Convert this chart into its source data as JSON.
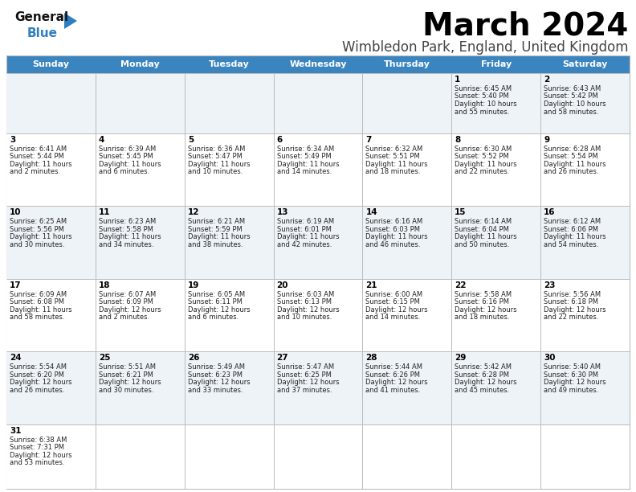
{
  "title": "March 2024",
  "subtitle": "Wimbledon Park, England, United Kingdom",
  "header_bg": "#3a85c0",
  "header_text": "#ffffff",
  "day_names": [
    "Sunday",
    "Monday",
    "Tuesday",
    "Wednesday",
    "Thursday",
    "Friday",
    "Saturday"
  ],
  "row_bg_odd": "#eef3f8",
  "row_bg_even": "#ffffff",
  "cell_border": "#bbbbbb",
  "date_color": "#000000",
  "info_color": "#222222",
  "title_color": "#000000",
  "subtitle_color": "#444444",
  "calendar": [
    [
      null,
      null,
      null,
      null,
      null,
      {
        "day": "1",
        "sunrise": "6:45 AM",
        "sunset": "5:40 PM",
        "daylight": "10 hours",
        "daylight2": "and 55 minutes."
      },
      {
        "day": "2",
        "sunrise": "6:43 AM",
        "sunset": "5:42 PM",
        "daylight": "10 hours",
        "daylight2": "and 58 minutes."
      }
    ],
    [
      {
        "day": "3",
        "sunrise": "6:41 AM",
        "sunset": "5:44 PM",
        "daylight": "11 hours",
        "daylight2": "and 2 minutes."
      },
      {
        "day": "4",
        "sunrise": "6:39 AM",
        "sunset": "5:45 PM",
        "daylight": "11 hours",
        "daylight2": "and 6 minutes."
      },
      {
        "day": "5",
        "sunrise": "6:36 AM",
        "sunset": "5:47 PM",
        "daylight": "11 hours",
        "daylight2": "and 10 minutes."
      },
      {
        "day": "6",
        "sunrise": "6:34 AM",
        "sunset": "5:49 PM",
        "daylight": "11 hours",
        "daylight2": "and 14 minutes."
      },
      {
        "day": "7",
        "sunrise": "6:32 AM",
        "sunset": "5:51 PM",
        "daylight": "11 hours",
        "daylight2": "and 18 minutes."
      },
      {
        "day": "8",
        "sunrise": "6:30 AM",
        "sunset": "5:52 PM",
        "daylight": "11 hours",
        "daylight2": "and 22 minutes."
      },
      {
        "day": "9",
        "sunrise": "6:28 AM",
        "sunset": "5:54 PM",
        "daylight": "11 hours",
        "daylight2": "and 26 minutes."
      }
    ],
    [
      {
        "day": "10",
        "sunrise": "6:25 AM",
        "sunset": "5:56 PM",
        "daylight": "11 hours",
        "daylight2": "and 30 minutes."
      },
      {
        "day": "11",
        "sunrise": "6:23 AM",
        "sunset": "5:58 PM",
        "daylight": "11 hours",
        "daylight2": "and 34 minutes."
      },
      {
        "day": "12",
        "sunrise": "6:21 AM",
        "sunset": "5:59 PM",
        "daylight": "11 hours",
        "daylight2": "and 38 minutes."
      },
      {
        "day": "13",
        "sunrise": "6:19 AM",
        "sunset": "6:01 PM",
        "daylight": "11 hours",
        "daylight2": "and 42 minutes."
      },
      {
        "day": "14",
        "sunrise": "6:16 AM",
        "sunset": "6:03 PM",
        "daylight": "11 hours",
        "daylight2": "and 46 minutes."
      },
      {
        "day": "15",
        "sunrise": "6:14 AM",
        "sunset": "6:04 PM",
        "daylight": "11 hours",
        "daylight2": "and 50 minutes."
      },
      {
        "day": "16",
        "sunrise": "6:12 AM",
        "sunset": "6:06 PM",
        "daylight": "11 hours",
        "daylight2": "and 54 minutes."
      }
    ],
    [
      {
        "day": "17",
        "sunrise": "6:09 AM",
        "sunset": "6:08 PM",
        "daylight": "11 hours",
        "daylight2": "and 58 minutes."
      },
      {
        "day": "18",
        "sunrise": "6:07 AM",
        "sunset": "6:09 PM",
        "daylight": "12 hours",
        "daylight2": "and 2 minutes."
      },
      {
        "day": "19",
        "sunrise": "6:05 AM",
        "sunset": "6:11 PM",
        "daylight": "12 hours",
        "daylight2": "and 6 minutes."
      },
      {
        "day": "20",
        "sunrise": "6:03 AM",
        "sunset": "6:13 PM",
        "daylight": "12 hours",
        "daylight2": "and 10 minutes."
      },
      {
        "day": "21",
        "sunrise": "6:00 AM",
        "sunset": "6:15 PM",
        "daylight": "12 hours",
        "daylight2": "and 14 minutes."
      },
      {
        "day": "22",
        "sunrise": "5:58 AM",
        "sunset": "6:16 PM",
        "daylight": "12 hours",
        "daylight2": "and 18 minutes."
      },
      {
        "day": "23",
        "sunrise": "5:56 AM",
        "sunset": "6:18 PM",
        "daylight": "12 hours",
        "daylight2": "and 22 minutes."
      }
    ],
    [
      {
        "day": "24",
        "sunrise": "5:54 AM",
        "sunset": "6:20 PM",
        "daylight": "12 hours",
        "daylight2": "and 26 minutes."
      },
      {
        "day": "25",
        "sunrise": "5:51 AM",
        "sunset": "6:21 PM",
        "daylight": "12 hours",
        "daylight2": "and 30 minutes."
      },
      {
        "day": "26",
        "sunrise": "5:49 AM",
        "sunset": "6:23 PM",
        "daylight": "12 hours",
        "daylight2": "and 33 minutes."
      },
      {
        "day": "27",
        "sunrise": "5:47 AM",
        "sunset": "6:25 PM",
        "daylight": "12 hours",
        "daylight2": "and 37 minutes."
      },
      {
        "day": "28",
        "sunrise": "5:44 AM",
        "sunset": "6:26 PM",
        "daylight": "12 hours",
        "daylight2": "and 41 minutes."
      },
      {
        "day": "29",
        "sunrise": "5:42 AM",
        "sunset": "6:28 PM",
        "daylight": "12 hours",
        "daylight2": "and 45 minutes."
      },
      {
        "day": "30",
        "sunrise": "5:40 AM",
        "sunset": "6:30 PM",
        "daylight": "12 hours",
        "daylight2": "and 49 minutes."
      }
    ],
    [
      {
        "day": "31",
        "sunrise": "6:38 AM",
        "sunset": "7:31 PM",
        "daylight": "12 hours",
        "daylight2": "and 53 minutes."
      },
      null,
      null,
      null,
      null,
      null,
      null
    ]
  ]
}
